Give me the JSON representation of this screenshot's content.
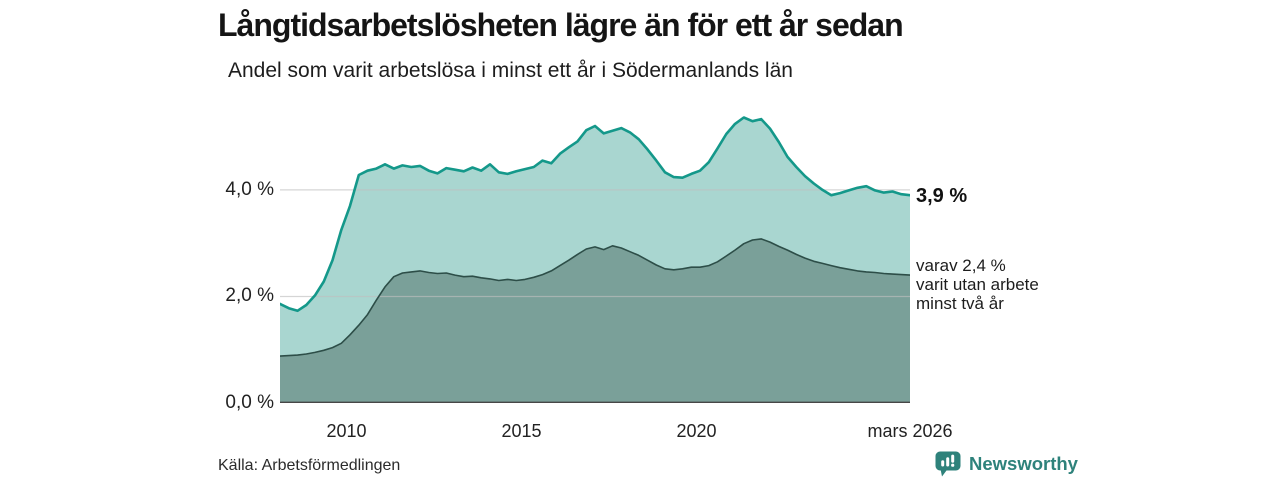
{
  "chart_data": {
    "type": "area",
    "title": "Långtidsarbetslösheten lägre än för ett år sedan",
    "subtitle": "Andel som varit arbetslösa i minst ett år i Södermanlands län",
    "xlabel": "",
    "ylabel": "",
    "x_range": [
      2008.1,
      2026.1
    ],
    "ylim": [
      0,
      5.5
    ],
    "grid": "horizontal",
    "gridlines": [
      2,
      4
    ],
    "legend_position": "end-of-line labels (right)",
    "yticks": [
      {
        "value": 0,
        "label": "0,0 %"
      },
      {
        "value": 2,
        "label": "2,0 %"
      },
      {
        "value": 4,
        "label": "4,0 %"
      }
    ],
    "xticks": [
      {
        "value": 2010,
        "label": "2010"
      },
      {
        "value": 2015,
        "label": "2015"
      },
      {
        "value": 2020,
        "label": "2020"
      },
      {
        "value": 2026.1,
        "label": "mars 2026"
      }
    ],
    "x": [
      2008.1,
      2008.35,
      2008.6,
      2008.85,
      2009.1,
      2009.35,
      2009.6,
      2009.85,
      2010.1,
      2010.35,
      2010.6,
      2010.85,
      2011.1,
      2011.35,
      2011.6,
      2011.85,
      2012.1,
      2012.35,
      2012.6,
      2012.85,
      2013.1,
      2013.35,
      2013.6,
      2013.85,
      2014.1,
      2014.35,
      2014.6,
      2014.85,
      2015.1,
      2015.35,
      2015.6,
      2015.85,
      2016.1,
      2016.35,
      2016.6,
      2016.85,
      2017.1,
      2017.35,
      2017.6,
      2017.85,
      2018.1,
      2018.35,
      2018.6,
      2018.85,
      2019.1,
      2019.35,
      2019.6,
      2019.85,
      2020.1,
      2020.35,
      2020.6,
      2020.85,
      2021.1,
      2021.35,
      2021.6,
      2021.85,
      2022.1,
      2022.35,
      2022.6,
      2022.85,
      2023.1,
      2023.35,
      2023.6,
      2023.85,
      2024.1,
      2024.35,
      2024.6,
      2024.85,
      2025.1,
      2025.35,
      2025.6,
      2025.85,
      2026.1
    ],
    "series": [
      {
        "name": "Andel som varit arbetslösa i minst ett år",
        "line_color": "#14988a",
        "fill_color": "#a9d6d0",
        "line_width": 2.6,
        "end_value_pct": 3.9,
        "values": [
          1.86,
          1.78,
          1.73,
          1.84,
          2.02,
          2.28,
          2.68,
          3.25,
          3.7,
          4.28,
          4.36,
          4.4,
          4.48,
          4.4,
          4.46,
          4.43,
          4.45,
          4.36,
          4.31,
          4.41,
          4.38,
          4.35,
          4.42,
          4.36,
          4.48,
          4.33,
          4.3,
          4.35,
          4.39,
          4.43,
          4.55,
          4.5,
          4.68,
          4.8,
          4.91,
          5.12,
          5.2,
          5.06,
          5.11,
          5.16,
          5.08,
          4.95,
          4.76,
          4.55,
          4.33,
          4.24,
          4.23,
          4.3,
          4.36,
          4.52,
          4.78,
          5.05,
          5.24,
          5.36,
          5.29,
          5.33,
          5.15,
          4.9,
          4.62,
          4.43,
          4.26,
          4.12,
          4.0,
          3.9,
          3.94,
          3.99,
          4.04,
          4.07,
          3.99,
          3.95,
          3.97,
          3.92,
          3.9
        ]
      },
      {
        "name": "varav utan arbete minst två år",
        "line_color": "#2d4e48",
        "fill_color": "#7aa099",
        "line_width": 1.6,
        "end_value_pct": 2.4,
        "values": [
          0.88,
          0.89,
          0.9,
          0.92,
          0.95,
          0.99,
          1.04,
          1.12,
          1.28,
          1.46,
          1.66,
          1.93,
          2.18,
          2.37,
          2.44,
          2.46,
          2.48,
          2.45,
          2.43,
          2.44,
          2.4,
          2.37,
          2.38,
          2.35,
          2.33,
          2.3,
          2.32,
          2.3,
          2.32,
          2.36,
          2.41,
          2.48,
          2.58,
          2.68,
          2.79,
          2.89,
          2.93,
          2.88,
          2.95,
          2.91,
          2.84,
          2.77,
          2.68,
          2.59,
          2.52,
          2.5,
          2.52,
          2.55,
          2.55,
          2.58,
          2.65,
          2.76,
          2.87,
          2.99,
          3.06,
          3.08,
          3.02,
          2.94,
          2.87,
          2.79,
          2.72,
          2.66,
          2.62,
          2.58,
          2.54,
          2.51,
          2.48,
          2.46,
          2.45,
          2.43,
          2.42,
          2.41,
          2.4
        ]
      }
    ],
    "gridline_color": "#c9c9c9",
    "baseline_color": "#474747"
  },
  "annotations": {
    "end_value": "3,9 %",
    "end_sub_lines": [
      "varav 2,4 %",
      "varit utan arbete",
      "minst två år"
    ]
  },
  "footer": {
    "source": "Källa: Arbetsförmedlingen",
    "brand": "Newsworthy",
    "brand_color": "#2e827b"
  }
}
